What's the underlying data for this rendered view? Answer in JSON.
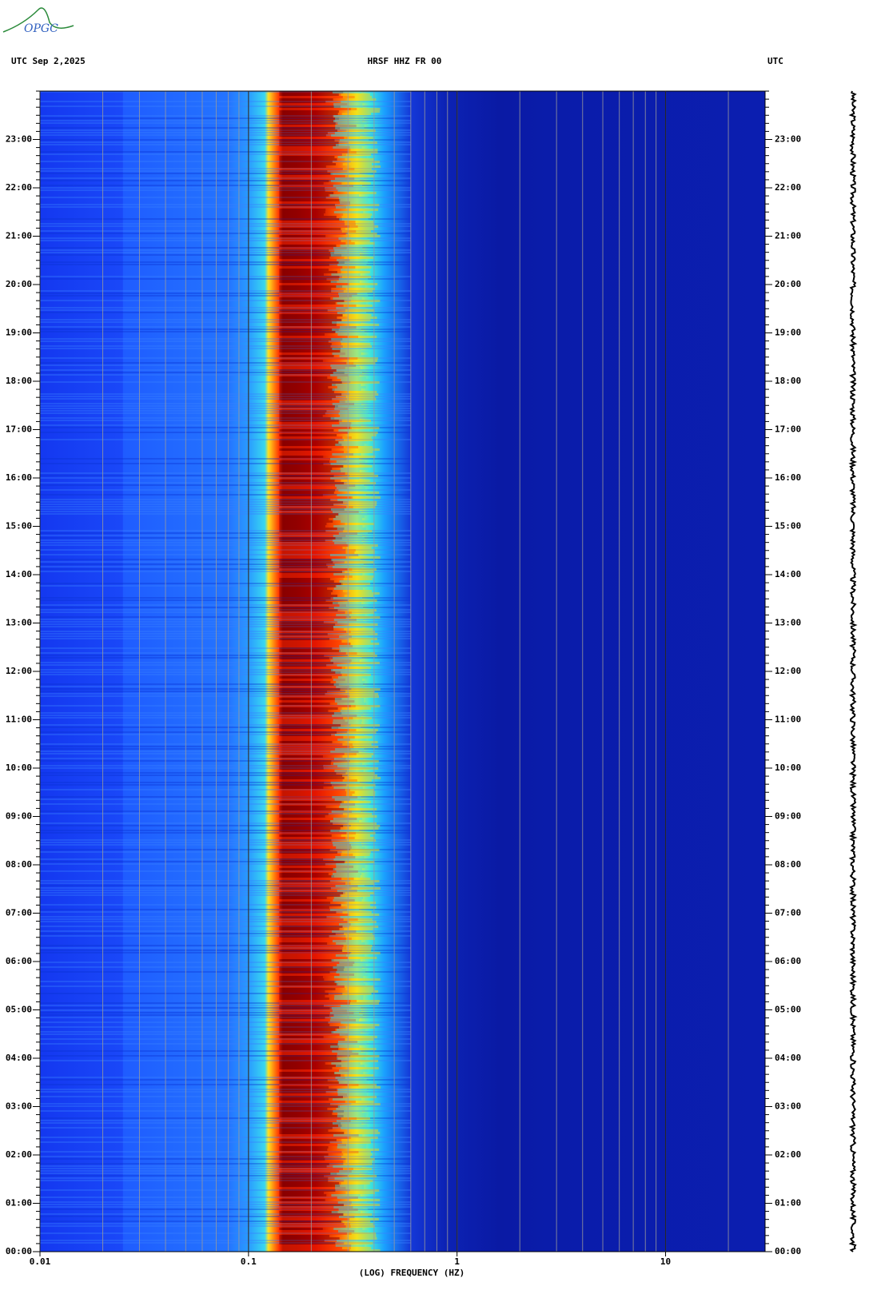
{
  "chart_data": {
    "type": "spectrogram",
    "header_left": "UTC  Sep 2,2025",
    "title": "HRSF HHZ FR 00",
    "header_right": "UTC",
    "logo": "OPGC",
    "xlabel": "(LOG) FREQUENCY (HZ)",
    "xscale": "log",
    "xlim": [
      0.01,
      30
    ],
    "xticks": [
      {
        "value": 0.01,
        "label": "0.01"
      },
      0.1,
      1,
      10
    ],
    "xgrid": [
      0.02,
      0.03,
      0.04,
      0.05,
      0.06,
      0.07,
      0.08,
      0.09,
      0.1,
      0.2,
      0.3,
      0.4,
      0.5,
      0.6,
      0.7,
      0.8,
      0.9,
      1,
      2,
      3,
      4,
      5,
      6,
      7,
      8,
      9,
      10,
      20
    ],
    "ylim": [
      0,
      24
    ],
    "yticks": [
      {
        "value": 0,
        "label": "00:00"
      },
      {
        "value": 1,
        "label": "01:00"
      },
      {
        "value": 2,
        "label": "02:00"
      },
      {
        "value": 3,
        "label": "03:00"
      },
      {
        "value": 4,
        "label": "04:00"
      },
      {
        "value": 5,
        "label": "05:00"
      },
      {
        "value": 6,
        "label": "06:00"
      },
      {
        "value": 7,
        "label": "07:00"
      },
      {
        "value": 8,
        "label": "08:00"
      },
      {
        "value": 9,
        "label": "09:00"
      },
      {
        "value": 10,
        "label": "10:00"
      },
      {
        "value": 11,
        "label": "11:00"
      },
      {
        "value": 12,
        "label": "12:00"
      },
      {
        "value": 13,
        "label": "13:00"
      },
      {
        "value": 14,
        "label": "14:00"
      },
      {
        "value": 15,
        "label": "15:00"
      },
      {
        "value": 16,
        "label": "16:00"
      },
      {
        "value": 17,
        "label": "17:00"
      },
      {
        "value": 18,
        "label": "18:00"
      },
      {
        "value": 19,
        "label": "19:00"
      },
      {
        "value": 20,
        "label": "20:00"
      },
      {
        "value": 21,
        "label": "21:00"
      },
      {
        "value": 22,
        "label": "22:00"
      },
      {
        "value": 23,
        "label": "23:00"
      }
    ]
  }
}
